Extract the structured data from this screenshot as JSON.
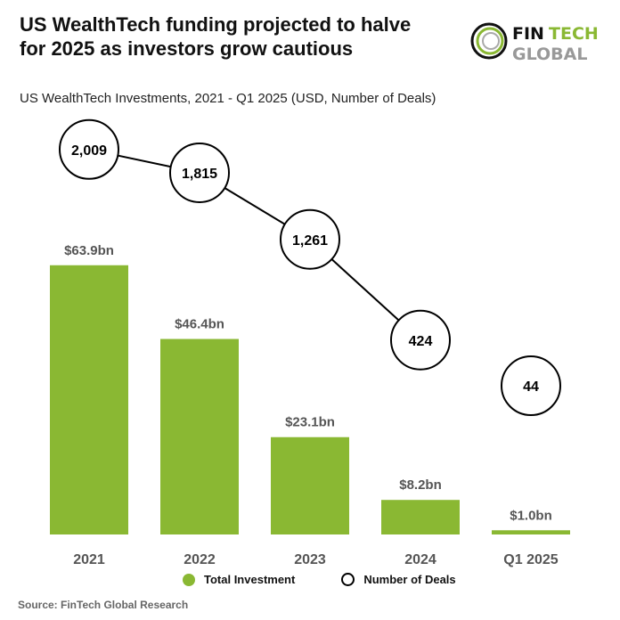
{
  "title_line1": "US WealthTech funding projected to halve",
  "title_line2": "for 2025 as investors grow cautious",
  "logo": {
    "text1": "FIN",
    "text2": "TECH",
    "text3": "GLOBAL"
  },
  "source": "Source: FinTech Global Research",
  "colors": {
    "bar": "#8ab833",
    "line": "#000000",
    "label": "#555555"
  },
  "chart_data": {
    "type": "bar",
    "title": "US WealthTech Investments, 2021 - Q1 2025 (USD, Number of Deals)",
    "categories": [
      "2021",
      "2022",
      "2023",
      "2024",
      "Q1 2025"
    ],
    "series": [
      {
        "name": "Total Investment",
        "type": "bar",
        "unit": "USD bn",
        "values": [
          63.9,
          46.4,
          23.1,
          8.2,
          1.0
        ],
        "labels": [
          "$63.9bn",
          "$46.4bn",
          "$23.1bn",
          "$8.2bn",
          "$1.0bn"
        ]
      },
      {
        "name": "Number of Deals",
        "type": "line",
        "values": [
          2009,
          1815,
          1261,
          424,
          44
        ],
        "labels": [
          "2,009",
          "1,815",
          "1,261",
          "424",
          "44"
        ]
      }
    ],
    "legend": "bottom",
    "grid": false
  }
}
